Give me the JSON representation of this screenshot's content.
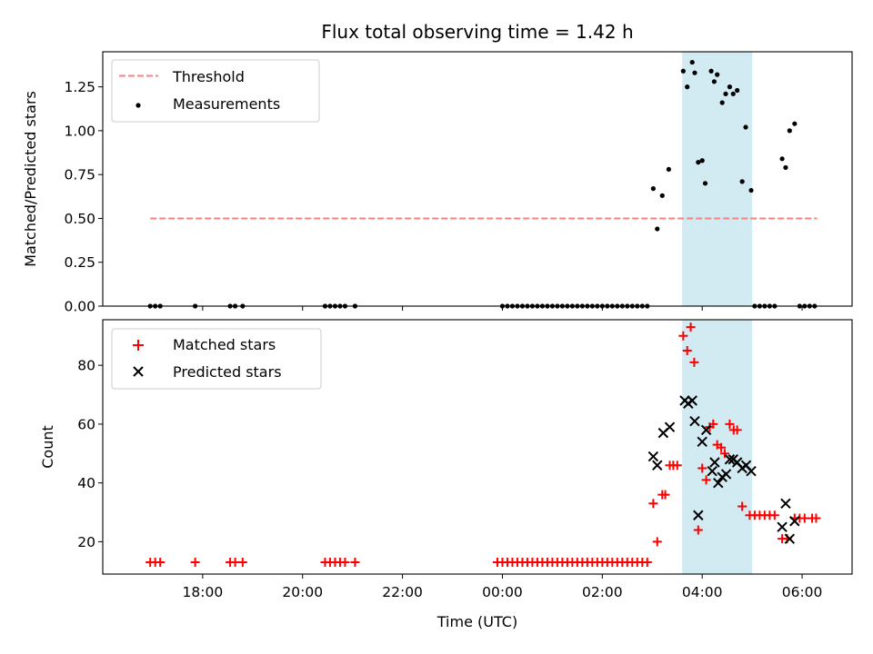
{
  "chart_data": [
    {
      "type": "scatter",
      "title": "Flux total observing time = 1.42 h",
      "xlabel": "",
      "ylabel": "Matched/Predicted stars",
      "xlim_hours": [
        -8.0,
        7.0
      ],
      "ylim": [
        0.0,
        1.45
      ],
      "yticks": [
        0.0,
        0.25,
        0.5,
        0.75,
        1.0,
        1.25
      ],
      "ytick_labels": [
        "0.00",
        "0.25",
        "0.50",
        "0.75",
        "1.00",
        "1.25"
      ],
      "xtick_hours": [
        -6,
        -4,
        -2,
        0,
        2,
        4,
        6
      ],
      "highlight_span_hours": [
        3.6,
        5.0
      ],
      "highlight_color": "#add8e6",
      "legend_position": "upper-left",
      "legend": [
        {
          "label": "Threshold",
          "kind": "dashed-line",
          "color": "#ff7f7f"
        },
        {
          "label": "Measurements",
          "kind": "dot",
          "color": "#000000"
        }
      ],
      "threshold": {
        "value": 0.5,
        "x_range_hours": [
          -7.05,
          6.3
        ],
        "color": "#ff7f7f"
      },
      "measurements": [
        {
          "x": -7.05,
          "y": 0.0
        },
        {
          "x": -6.95,
          "y": 0.0
        },
        {
          "x": -6.85,
          "y": 0.0
        },
        {
          "x": -6.15,
          "y": 0.0
        },
        {
          "x": -5.45,
          "y": 0.0
        },
        {
          "x": -5.35,
          "y": 0.0
        },
        {
          "x": -5.2,
          "y": 0.0
        },
        {
          "x": -3.55,
          "y": 0.0
        },
        {
          "x": -3.45,
          "y": 0.0
        },
        {
          "x": -3.35,
          "y": 0.0
        },
        {
          "x": -3.25,
          "y": 0.0
        },
        {
          "x": -3.15,
          "y": 0.0
        },
        {
          "x": -2.95,
          "y": 0.0
        },
        {
          "x": 0.0,
          "y": 0.0
        },
        {
          "x": 0.1,
          "y": 0.0
        },
        {
          "x": 0.2,
          "y": 0.0
        },
        {
          "x": 0.3,
          "y": 0.0
        },
        {
          "x": 0.4,
          "y": 0.0
        },
        {
          "x": 0.5,
          "y": 0.0
        },
        {
          "x": 0.6,
          "y": 0.0
        },
        {
          "x": 0.7,
          "y": 0.0
        },
        {
          "x": 0.8,
          "y": 0.0
        },
        {
          "x": 0.9,
          "y": 0.0
        },
        {
          "x": 1.0,
          "y": 0.0
        },
        {
          "x": 1.1,
          "y": 0.0
        },
        {
          "x": 1.2,
          "y": 0.0
        },
        {
          "x": 1.3,
          "y": 0.0
        },
        {
          "x": 1.4,
          "y": 0.0
        },
        {
          "x": 1.5,
          "y": 0.0
        },
        {
          "x": 1.6,
          "y": 0.0
        },
        {
          "x": 1.7,
          "y": 0.0
        },
        {
          "x": 1.8,
          "y": 0.0
        },
        {
          "x": 1.9,
          "y": 0.0
        },
        {
          "x": 2.0,
          "y": 0.0
        },
        {
          "x": 2.1,
          "y": 0.0
        },
        {
          "x": 2.2,
          "y": 0.0
        },
        {
          "x": 2.3,
          "y": 0.0
        },
        {
          "x": 2.4,
          "y": 0.0
        },
        {
          "x": 2.5,
          "y": 0.0
        },
        {
          "x": 2.6,
          "y": 0.0
        },
        {
          "x": 2.7,
          "y": 0.0
        },
        {
          "x": 2.8,
          "y": 0.0
        },
        {
          "x": 2.9,
          "y": 0.0
        },
        {
          "x": 3.02,
          "y": 0.67
        },
        {
          "x": 3.1,
          "y": 0.44
        },
        {
          "x": 3.2,
          "y": 0.63
        },
        {
          "x": 3.33,
          "y": 0.78
        },
        {
          "x": 3.62,
          "y": 1.34
        },
        {
          "x": 3.7,
          "y": 1.25
        },
        {
          "x": 3.8,
          "y": 1.39
        },
        {
          "x": 3.85,
          "y": 1.33
        },
        {
          "x": 3.92,
          "y": 0.82
        },
        {
          "x": 4.0,
          "y": 0.83
        },
        {
          "x": 4.06,
          "y": 0.7
        },
        {
          "x": 4.18,
          "y": 1.34
        },
        {
          "x": 4.24,
          "y": 1.28
        },
        {
          "x": 4.3,
          "y": 1.32
        },
        {
          "x": 4.4,
          "y": 1.16
        },
        {
          "x": 4.47,
          "y": 1.21
        },
        {
          "x": 4.55,
          "y": 1.25
        },
        {
          "x": 4.62,
          "y": 1.21
        },
        {
          "x": 4.7,
          "y": 1.23
        },
        {
          "x": 4.8,
          "y": 0.71
        },
        {
          "x": 4.87,
          "y": 1.02
        },
        {
          "x": 4.98,
          "y": 0.66
        },
        {
          "x": 5.05,
          "y": 0.0
        },
        {
          "x": 5.15,
          "y": 0.0
        },
        {
          "x": 5.25,
          "y": 0.0
        },
        {
          "x": 5.35,
          "y": 0.0
        },
        {
          "x": 5.45,
          "y": 0.0
        },
        {
          "x": 5.6,
          "y": 0.84
        },
        {
          "x": 5.67,
          "y": 0.79
        },
        {
          "x": 5.75,
          "y": 1.0
        },
        {
          "x": 5.85,
          "y": 1.04
        },
        {
          "x": 5.95,
          "y": 0.0
        },
        {
          "x": 6.05,
          "y": 0.0
        },
        {
          "x": 6.15,
          "y": 0.0
        },
        {
          "x": 6.25,
          "y": 0.0
        }
      ]
    },
    {
      "type": "scatter",
      "title": "",
      "xlabel": "Time (UTC)",
      "ylabel": "Count",
      "xlim_hours": [
        -8.0,
        7.0
      ],
      "ylim": [
        9.0,
        95.5
      ],
      "yticks": [
        20,
        40,
        60,
        80
      ],
      "ytick_labels": [
        "20",
        "40",
        "60",
        "80"
      ],
      "xtick_hours": [
        -6,
        -4,
        -2,
        0,
        2,
        4,
        6
      ],
      "xtick_labels": [
        "18:00",
        "20:00",
        "22:00",
        "00:00",
        "02:00",
        "04:00",
        "06:00"
      ],
      "highlight_span_hours": [
        3.6,
        5.0
      ],
      "highlight_color": "#add8e6",
      "legend_position": "upper-left",
      "legend": [
        {
          "label": "Matched stars",
          "kind": "plus",
          "color": "#ff0000"
        },
        {
          "label": "Predicted stars",
          "kind": "x",
          "color": "#000000"
        }
      ],
      "matched": [
        {
          "x": -7.05,
          "y": 13
        },
        {
          "x": -6.95,
          "y": 13
        },
        {
          "x": -6.85,
          "y": 13
        },
        {
          "x": -6.15,
          "y": 13
        },
        {
          "x": -5.45,
          "y": 13
        },
        {
          "x": -5.35,
          "y": 13
        },
        {
          "x": -5.2,
          "y": 13
        },
        {
          "x": -3.55,
          "y": 13
        },
        {
          "x": -3.45,
          "y": 13
        },
        {
          "x": -3.35,
          "y": 13
        },
        {
          "x": -3.25,
          "y": 13
        },
        {
          "x": -3.15,
          "y": 13
        },
        {
          "x": -2.95,
          "y": 13
        },
        {
          "x": -0.1,
          "y": 13
        },
        {
          "x": 0.0,
          "y": 13
        },
        {
          "x": 0.1,
          "y": 13
        },
        {
          "x": 0.2,
          "y": 13
        },
        {
          "x": 0.3,
          "y": 13
        },
        {
          "x": 0.4,
          "y": 13
        },
        {
          "x": 0.5,
          "y": 13
        },
        {
          "x": 0.6,
          "y": 13
        },
        {
          "x": 0.7,
          "y": 13
        },
        {
          "x": 0.8,
          "y": 13
        },
        {
          "x": 0.9,
          "y": 13
        },
        {
          "x": 1.0,
          "y": 13
        },
        {
          "x": 1.1,
          "y": 13
        },
        {
          "x": 1.2,
          "y": 13
        },
        {
          "x": 1.3,
          "y": 13
        },
        {
          "x": 1.4,
          "y": 13
        },
        {
          "x": 1.5,
          "y": 13
        },
        {
          "x": 1.6,
          "y": 13
        },
        {
          "x": 1.7,
          "y": 13
        },
        {
          "x": 1.8,
          "y": 13
        },
        {
          "x": 1.9,
          "y": 13
        },
        {
          "x": 2.0,
          "y": 13
        },
        {
          "x": 2.1,
          "y": 13
        },
        {
          "x": 2.2,
          "y": 13
        },
        {
          "x": 2.3,
          "y": 13
        },
        {
          "x": 2.4,
          "y": 13
        },
        {
          "x": 2.5,
          "y": 13
        },
        {
          "x": 2.6,
          "y": 13
        },
        {
          "x": 2.7,
          "y": 13
        },
        {
          "x": 2.8,
          "y": 13
        },
        {
          "x": 2.9,
          "y": 13
        },
        {
          "x": 3.02,
          "y": 33
        },
        {
          "x": 3.1,
          "y": 20
        },
        {
          "x": 3.2,
          "y": 36
        },
        {
          "x": 3.26,
          "y": 36
        },
        {
          "x": 3.35,
          "y": 46
        },
        {
          "x": 3.42,
          "y": 46
        },
        {
          "x": 3.5,
          "y": 46
        },
        {
          "x": 3.62,
          "y": 90
        },
        {
          "x": 3.7,
          "y": 85
        },
        {
          "x": 3.77,
          "y": 93
        },
        {
          "x": 3.84,
          "y": 81
        },
        {
          "x": 3.92,
          "y": 24
        },
        {
          "x": 4.0,
          "y": 45
        },
        {
          "x": 4.08,
          "y": 41
        },
        {
          "x": 4.15,
          "y": 59
        },
        {
          "x": 4.22,
          "y": 60
        },
        {
          "x": 4.3,
          "y": 53
        },
        {
          "x": 4.38,
          "y": 52
        },
        {
          "x": 4.45,
          "y": 50
        },
        {
          "x": 4.55,
          "y": 60
        },
        {
          "x": 4.63,
          "y": 58
        },
        {
          "x": 4.7,
          "y": 58
        },
        {
          "x": 4.8,
          "y": 32
        },
        {
          "x": 4.95,
          "y": 29
        },
        {
          "x": 5.05,
          "y": 29
        },
        {
          "x": 5.15,
          "y": 29
        },
        {
          "x": 5.25,
          "y": 29
        },
        {
          "x": 5.35,
          "y": 29
        },
        {
          "x": 5.45,
          "y": 29
        },
        {
          "x": 5.6,
          "y": 21
        },
        {
          "x": 5.7,
          "y": 21
        },
        {
          "x": 5.85,
          "y": 28
        },
        {
          "x": 5.95,
          "y": 28
        },
        {
          "x": 6.05,
          "y": 28
        },
        {
          "x": 6.2,
          "y": 28
        },
        {
          "x": 6.28,
          "y": 28
        }
      ],
      "predicted": [
        {
          "x": 3.02,
          "y": 49
        },
        {
          "x": 3.1,
          "y": 46
        },
        {
          "x": 3.22,
          "y": 57
        },
        {
          "x": 3.35,
          "y": 59
        },
        {
          "x": 3.65,
          "y": 68
        },
        {
          "x": 3.72,
          "y": 67
        },
        {
          "x": 3.8,
          "y": 68
        },
        {
          "x": 3.85,
          "y": 61
        },
        {
          "x": 3.92,
          "y": 29
        },
        {
          "x": 4.0,
          "y": 54
        },
        {
          "x": 4.08,
          "y": 58
        },
        {
          "x": 4.2,
          "y": 44
        },
        {
          "x": 4.25,
          "y": 47
        },
        {
          "x": 4.32,
          "y": 40
        },
        {
          "x": 4.4,
          "y": 42
        },
        {
          "x": 4.48,
          "y": 43
        },
        {
          "x": 4.55,
          "y": 48
        },
        {
          "x": 4.62,
          "y": 48
        },
        {
          "x": 4.7,
          "y": 47
        },
        {
          "x": 4.8,
          "y": 45
        },
        {
          "x": 4.88,
          "y": 46
        },
        {
          "x": 4.98,
          "y": 44
        },
        {
          "x": 5.6,
          "y": 25
        },
        {
          "x": 5.67,
          "y": 33
        },
        {
          "x": 5.75,
          "y": 21
        },
        {
          "x": 5.85,
          "y": 27
        }
      ]
    }
  ]
}
